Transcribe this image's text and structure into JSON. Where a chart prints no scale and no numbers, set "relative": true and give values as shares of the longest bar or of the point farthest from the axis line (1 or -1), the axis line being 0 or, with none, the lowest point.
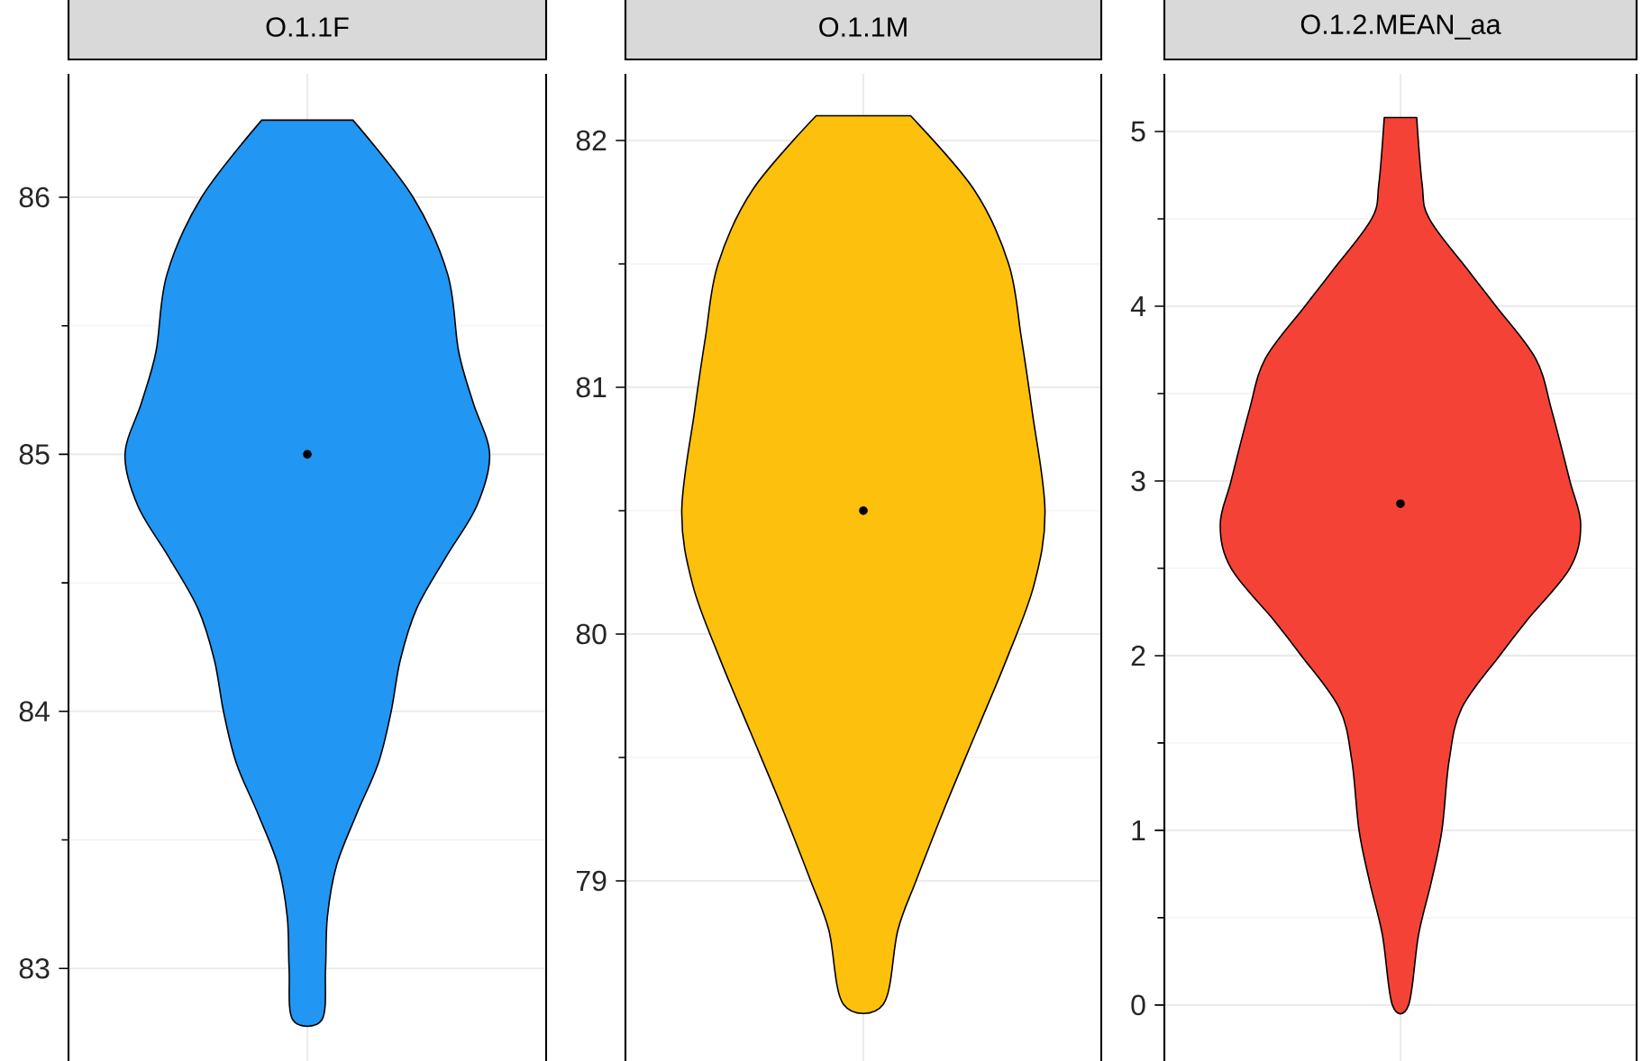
{
  "chart_data": [
    {
      "type": "area",
      "title": "O.1.1F",
      "orientation": "horizontal",
      "relative": true,
      "ylim": [
        82.64,
        86.48
      ],
      "yticks": [
        83,
        84,
        85,
        86
      ],
      "grid": true,
      "series": [
        {
          "color": "#2196f3",
          "x": [
            86.3,
            86.0,
            85.7,
            85.4,
            85.2,
            85.0,
            84.8,
            84.6,
            84.4,
            84.2,
            84.0,
            83.8,
            83.6,
            83.4,
            83.2,
            83.0,
            82.8
          ],
          "values": [
            0.25,
            0.58,
            0.77,
            0.83,
            0.91,
            1.0,
            0.93,
            0.76,
            0.6,
            0.51,
            0.46,
            0.39,
            0.27,
            0.16,
            0.11,
            0.1,
            0.08
          ]
        },
        {
          "type": "scatter",
          "color": "#000000",
          "marker": "circle",
          "x": [
            85.0
          ],
          "values": [
            0
          ]
        }
      ]
    },
    {
      "type": "area",
      "title": "O.1.1M",
      "orientation": "horizontal",
      "relative": true,
      "ylim": [
        78.27,
        82.27
      ],
      "yticks": [
        79,
        80,
        81,
        82
      ],
      "grid": true,
      "series": [
        {
          "color": "#fdc00c",
          "x": [
            82.1,
            81.8,
            81.5,
            81.2,
            80.9,
            80.5,
            80.2,
            79.9,
            79.6,
            79.3,
            79.0,
            78.8,
            78.5
          ],
          "values": [
            0.26,
            0.61,
            0.8,
            0.87,
            0.93,
            1.0,
            0.94,
            0.79,
            0.62,
            0.45,
            0.29,
            0.19,
            0.11
          ]
        },
        {
          "type": "scatter",
          "color": "#000000",
          "marker": "circle",
          "x": [
            80.5
          ],
          "values": [
            0
          ]
        }
      ]
    },
    {
      "type": "area",
      "title": "O.1.2.MEAN_aa",
      "orientation": "horizontal",
      "relative": true,
      "ylim": [
        -0.32,
        5.33
      ],
      "yticks": [
        0,
        1,
        2,
        3,
        4,
        5
      ],
      "grid": true,
      "series": [
        {
          "color": "#f44336",
          "x": [
            5.08,
            4.7,
            4.5,
            4.2,
            4.0,
            3.7,
            3.4,
            3.0,
            2.75,
            2.5,
            2.2,
            2.0,
            1.7,
            1.4,
            1.0,
            0.7,
            0.4,
            0.0
          ],
          "values": [
            0.09,
            0.12,
            0.16,
            0.38,
            0.53,
            0.75,
            0.84,
            0.94,
            1.0,
            0.94,
            0.7,
            0.55,
            0.34,
            0.27,
            0.23,
            0.17,
            0.1,
            0.045
          ]
        },
        {
          "type": "scatter",
          "color": "#000000",
          "marker": "circle",
          "x": [
            2.87
          ],
          "values": [
            0
          ]
        }
      ]
    }
  ]
}
